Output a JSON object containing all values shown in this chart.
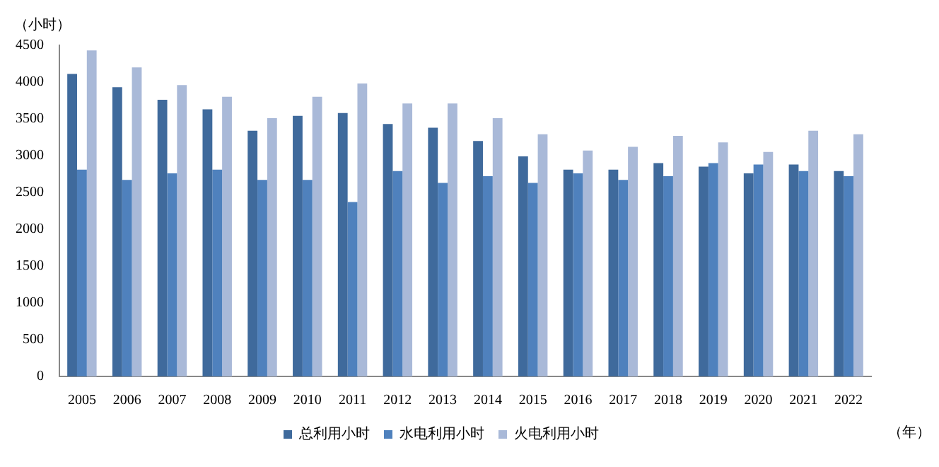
{
  "chart_data": {
    "type": "bar",
    "ylabel": "（小时）",
    "xlabel": "（年）",
    "categories": [
      "2005",
      "2006",
      "2007",
      "2008",
      "2009",
      "2010",
      "2011",
      "2012",
      "2013",
      "2014",
      "2015",
      "2016",
      "2017",
      "2018",
      "2019",
      "2020",
      "2021",
      "2022"
    ],
    "series": [
      {
        "name": "总利用小时",
        "color": "#3f6a9c",
        "values": [
          4110,
          3930,
          3760,
          3630,
          3340,
          3540,
          3580,
          3430,
          3380,
          3200,
          2990,
          2810,
          2810,
          2900,
          2850,
          2760,
          2880,
          2790
        ]
      },
      {
        "name": "水电利用小时",
        "color": "#4f81bd",
        "values": [
          2810,
          2670,
          2760,
          2810,
          2670,
          2670,
          2370,
          2790,
          2630,
          2720,
          2630,
          2760,
          2670,
          2720,
          2900,
          2880,
          2790,
          2720
        ]
      },
      {
        "name": "火电利用小时",
        "color": "#a9b9d8",
        "values": [
          4430,
          4200,
          3960,
          3800,
          3510,
          3800,
          3980,
          3710,
          3710,
          3510,
          3290,
          3070,
          3120,
          3270,
          3180,
          3050,
          3340,
          3290
        ]
      }
    ],
    "ylim": [
      0,
      4500
    ],
    "yticks": [
      0,
      500,
      1000,
      1500,
      2000,
      2500,
      3000,
      3500,
      4000,
      4500
    ],
    "grid": false,
    "legend": "bottom"
  }
}
